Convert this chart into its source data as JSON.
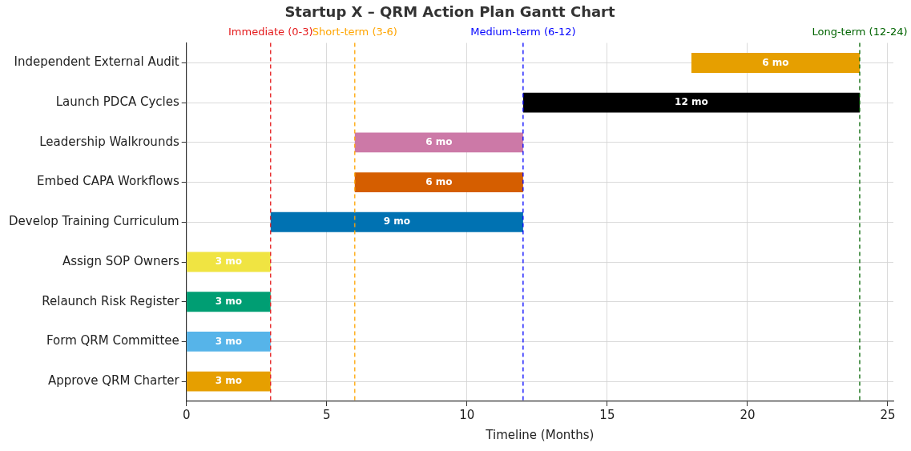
{
  "chart_data": {
    "type": "bar",
    "orientation": "horizontal",
    "title": "Startup X – QRM Action Plan Gantt Chart",
    "xlabel": "Timeline (Months)",
    "categories": [
      "Independent External Audit",
      "Launch PDCA Cycles",
      "Leadership Walkrounds",
      "Embed CAPA Workflows",
      "Develop Training Curriculum",
      "Assign SOP Owners",
      "Relaunch Risk Register",
      "Form QRM Committee",
      "Approve QRM Charter"
    ],
    "base": [
      18,
      12,
      6,
      6,
      3,
      0,
      0,
      0,
      0
    ],
    "values": [
      6,
      12,
      6,
      6,
      9,
      3,
      3,
      3,
      3
    ],
    "colors": [
      "#e69f00",
      "#000000",
      "#cc79a7",
      "#d55e00",
      "#0072b2",
      "#f0e442",
      "#009e73",
      "#56b4e9",
      "#e69f00"
    ],
    "value_labels": [
      "6 mo",
      "12 mo",
      "6 mo",
      "6 mo",
      "9 mo",
      "3 mo",
      "3 mo",
      "3 mo",
      "3 mo"
    ],
    "xlim": [
      0,
      25.2
    ],
    "xticks": [
      0,
      5,
      10,
      15,
      20,
      25
    ],
    "ref_lines": [
      {
        "axis": "x",
        "value": 3,
        "label": "Immediate (0-3)",
        "color": "#e41a1c",
        "line_style": "dashed"
      },
      {
        "axis": "x",
        "value": 6,
        "label": "Short-term (3-6)",
        "color": "#ffa500",
        "line_style": "dashed"
      },
      {
        "axis": "x",
        "value": 12,
        "label": "Medium-term (6-12)",
        "color": "#0000ff",
        "line_style": "dashed"
      },
      {
        "axis": "x",
        "value": 24,
        "label": "Long-term (12-24)",
        "color": "#006400",
        "line_style": "dashed"
      }
    ],
    "grid": true,
    "legend": false
  }
}
